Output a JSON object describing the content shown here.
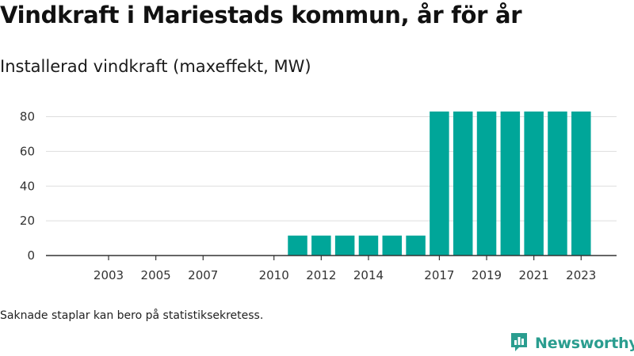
{
  "title": "Vindkraft i Mariestads kommun, år för år",
  "subtitle": "Installerad vindkraft (maxeffekt, MW)",
  "footnote": "Saknade staplar kan bero på statistiksekretess.",
  "brand": {
    "name": "Newsworthy",
    "icon": "newsworthy-logo-icon"
  },
  "colors": {
    "bar": "#00a699",
    "axis": "#333333",
    "grid": "#dddddd",
    "brand": "#2a9d8f"
  },
  "chart_data": {
    "type": "bar",
    "title": "Installerad vindkraft (maxeffekt, MW)",
    "xlabel": "",
    "ylabel": "",
    "x": [
      2003,
      2004,
      2005,
      2006,
      2007,
      2008,
      2010,
      2011,
      2012,
      2013,
      2014,
      2015,
      2016,
      2017,
      2018,
      2019,
      2020,
      2021,
      2022,
      2023
    ],
    "values": [
      0,
      0,
      0,
      0,
      0,
      0,
      0,
      11.5,
      11.5,
      11.5,
      11.5,
      11.5,
      11.5,
      83,
      83,
      83,
      83,
      83,
      83,
      83
    ],
    "x_tick_labels": [
      "2003",
      "2005",
      "2007",
      "2010",
      "2012",
      "2014",
      "2017",
      "2019",
      "2021",
      "2023"
    ],
    "y_ticks": [
      0,
      20,
      40,
      60,
      80
    ],
    "ylim": [
      0,
      88
    ],
    "grid": true
  }
}
